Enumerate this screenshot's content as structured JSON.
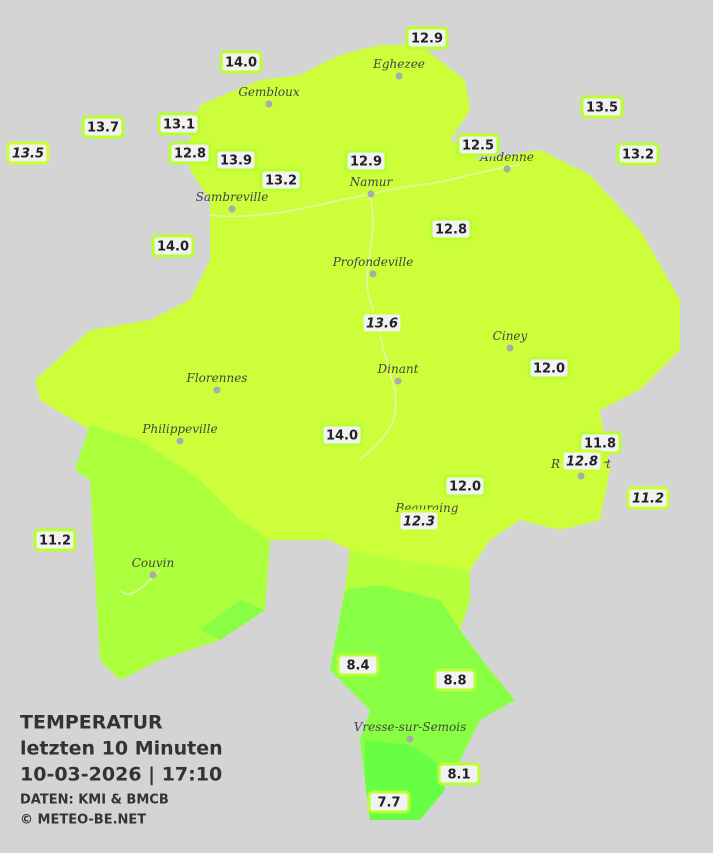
{
  "title": {
    "heading": "TEMPERATUR",
    "period": "letzten 10 Minuten",
    "timestamp": "10-03-2026  |  17:10",
    "source": "DATEN: KMI & BMCB",
    "copyright": "© METEO-BE.NET"
  },
  "cities": [
    "Eghezee",
    "Gembloux",
    "Andenne",
    "Namur",
    "Sambreville",
    "Profondeville",
    "Ciney",
    "Dinant",
    "Florennes",
    "Philippeville",
    "Rochefort",
    "Beauraing",
    "Couvin",
    "Vresse-sur-Semois"
  ],
  "stations": [
    {
      "value": 12.9,
      "label": "12.9",
      "italic": false
    },
    {
      "value": 14.0,
      "label": "14.0",
      "italic": false
    },
    {
      "value": 13.5,
      "label": "13.5",
      "italic": false
    },
    {
      "value": 13.7,
      "label": "13.7",
      "italic": false
    },
    {
      "value": 13.1,
      "label": "13.1",
      "italic": false
    },
    {
      "value": 13.5,
      "label": "13.5",
      "italic": true
    },
    {
      "value": 12.8,
      "label": "12.8",
      "italic": false
    },
    {
      "value": 13.9,
      "label": "13.9",
      "italic": false
    },
    {
      "value": 12.5,
      "label": "12.5",
      "italic": false
    },
    {
      "value": 13.2,
      "label": "13.2",
      "italic": false
    },
    {
      "value": 12.9,
      "label": "12.9",
      "italic": false
    },
    {
      "value": 13.2,
      "label": "13.2",
      "italic": false
    },
    {
      "value": 14.0,
      "label": "14.0",
      "italic": false
    },
    {
      "value": 12.8,
      "label": "12.8",
      "italic": false
    },
    {
      "value": 13.6,
      "label": "13.6",
      "italic": true
    },
    {
      "value": 12.0,
      "label": "12.0",
      "italic": false
    },
    {
      "value": 14.0,
      "label": "14.0",
      "italic": false
    },
    {
      "value": 11.8,
      "label": "11.8",
      "italic": false
    },
    {
      "value": 12.8,
      "label": "12.8",
      "italic": true
    },
    {
      "value": 11.2,
      "label": "11.2",
      "italic": true
    },
    {
      "value": 12.0,
      "label": "12.0",
      "italic": false
    },
    {
      "value": 12.3,
      "label": "12.3",
      "italic": true
    },
    {
      "value": 11.2,
      "label": "11.2",
      "italic": false
    },
    {
      "value": 8.4,
      "label": "8.4",
      "italic": false
    },
    {
      "value": 8.8,
      "label": "8.8",
      "italic": false
    },
    {
      "value": 8.1,
      "label": "8.1",
      "italic": false
    },
    {
      "value": 7.7,
      "label": "7.7",
      "italic": false
    }
  ]
}
